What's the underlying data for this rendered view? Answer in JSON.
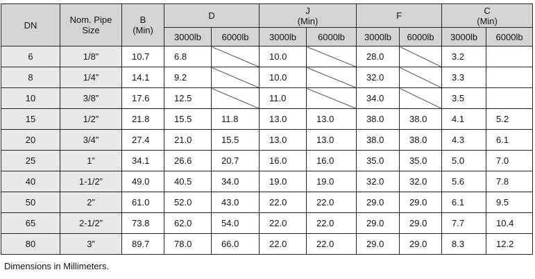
{
  "table": {
    "columns": [
      "DN",
      "Nom. Pipe\nSize",
      "B\n(Min)",
      "D",
      "J\n(Min)",
      "F",
      "C\n(Min)"
    ],
    "subcolumns": [
      "3000lb",
      "6000lb",
      "3000lb",
      "6000lb",
      "3000lb",
      "6000lb",
      "3000lb",
      "6000lb"
    ],
    "rows": [
      [
        "6",
        "1/8”",
        "10.7",
        "6.8",
        null,
        "10.0",
        null,
        "28.0",
        null,
        "3.2",
        null
      ],
      [
        "8",
        "1/4”",
        "14.1",
        "9.2",
        null,
        "10.0",
        null,
        "32.0",
        null,
        "3.3",
        null
      ],
      [
        "10",
        "3/8”",
        "17.6",
        "12.5",
        null,
        "11.0",
        null,
        "34.0",
        null,
        "3.5",
        null
      ],
      [
        "15",
        "1/2”",
        "21.8",
        "15.5",
        "11.8",
        "13.0",
        "13.0",
        "38.0",
        "38.0",
        "4.1",
        "5.2"
      ],
      [
        "20",
        "3/4”",
        "27.4",
        "21.0",
        "15.5",
        "13.0",
        "13.0",
        "38.0",
        "38.0",
        "4.3",
        "6.1"
      ],
      [
        "25",
        "1”",
        "34.1",
        "26.6",
        "20.7",
        "16.0",
        "16.0",
        "35.0",
        "35.0",
        "5.0",
        "7.0"
      ],
      [
        "40",
        "1-1/2”",
        "49.0",
        "40.5",
        "34.0",
        "19.0",
        "19.0",
        "32.0",
        "32.0",
        "5.6",
        "7.8"
      ],
      [
        "50",
        "2”",
        "61.0",
        "52.0",
        "43.0",
        "22.0",
        "22.0",
        "29.0",
        "29.0",
        "6.1",
        "9.5"
      ],
      [
        "65",
        "2-1/2”",
        "73.8",
        "62.0",
        "54.0",
        "22.0",
        "22.0",
        "29.0",
        "29.0",
        "7.7",
        "10.4"
      ],
      [
        "80",
        "3”",
        "89.7",
        "78.0",
        "66.0",
        "22.0",
        "22.0",
        "29.0",
        "29.0",
        "8.3",
        "12.2"
      ]
    ]
  },
  "note": "Dimensions in Millimeters."
}
